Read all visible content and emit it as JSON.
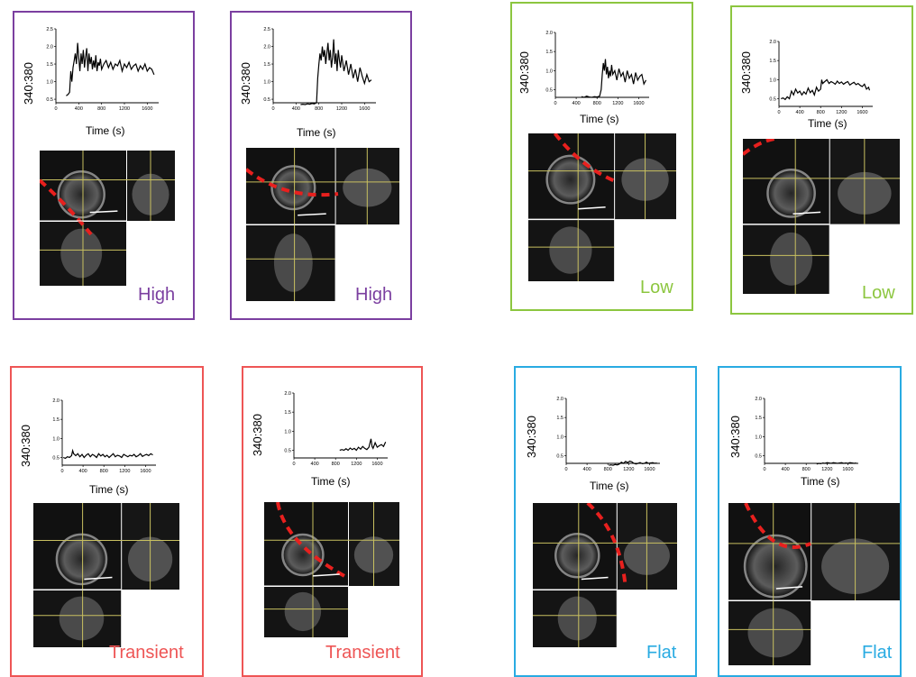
{
  "colors": {
    "High": "#7b3fa0",
    "Low": "#8cc63f",
    "Transient": "#ee5555",
    "Flat": "#29abe2",
    "dashed_line": "#e8201e",
    "crosshair": "#c8c060"
  },
  "chart_data": [
    {
      "type": "line",
      "category": "High",
      "ylabel": "340:380",
      "xlabel": "Time (s)",
      "xlim": [
        0,
        1800
      ],
      "ylim": [
        0.4,
        2.5
      ],
      "xticks": [
        "0",
        "400",
        "800",
        "1200",
        "1600"
      ],
      "yticks": [
        "0.5",
        "1.0",
        "1.5",
        "2.0",
        "2.5"
      ],
      "series": [
        {
          "x": [
            180,
            200,
            220,
            240,
            260,
            280,
            300,
            320,
            340,
            360,
            380,
            400,
            420,
            440,
            460,
            480,
            500,
            520,
            540,
            560,
            580,
            600,
            620,
            640,
            660,
            680,
            700,
            720,
            740,
            760,
            780,
            800,
            840,
            880,
            920,
            960,
            1000,
            1040,
            1080,
            1120,
            1160,
            1200,
            1240,
            1280,
            1320,
            1360,
            1400,
            1440,
            1480,
            1520,
            1560,
            1600,
            1640,
            1680,
            1720
          ],
          "y": [
            0.6,
            0.62,
            0.65,
            0.7,
            1.3,
            1.0,
            1.4,
            1.6,
            1.8,
            1.5,
            2.1,
            1.7,
            1.3,
            1.8,
            1.5,
            1.9,
            1.4,
            1.7,
            1.95,
            1.3,
            1.8,
            1.5,
            1.7,
            1.35,
            1.6,
            1.4,
            1.75,
            1.3,
            1.55,
            1.45,
            1.65,
            1.35,
            1.5,
            1.6,
            1.4,
            1.55,
            1.35,
            1.5,
            1.45,
            1.6,
            1.3,
            1.5,
            1.4,
            1.55,
            1.35,
            1.45,
            1.5,
            1.3,
            1.45,
            1.35,
            1.5,
            1.3,
            1.4,
            1.35,
            1.2
          ]
        }
      ]
    },
    {
      "type": "line",
      "category": "High",
      "ylabel": "340:380",
      "xlabel": "Time (s)",
      "xlim": [
        0,
        1800
      ],
      "ylim": [
        0.4,
        2.5
      ],
      "xticks": [
        "0",
        "400",
        "800",
        "1200",
        "1600"
      ],
      "yticks": [
        "0.5",
        "1.0",
        "1.5",
        "2.0",
        "2.5"
      ],
      "series": [
        {
          "x": [
            480,
            520,
            560,
            600,
            640,
            680,
            720,
            760,
            780,
            800,
            820,
            840,
            860,
            880,
            900,
            920,
            940,
            960,
            980,
            1000,
            1020,
            1040,
            1060,
            1080,
            1100,
            1120,
            1140,
            1160,
            1180,
            1200,
            1240,
            1280,
            1320,
            1360,
            1400,
            1440,
            1480,
            1520,
            1560,
            1600,
            1640,
            1680,
            1720
          ],
          "y": [
            0.35,
            0.36,
            0.35,
            0.37,
            0.36,
            0.38,
            0.37,
            0.4,
            1.1,
            1.5,
            1.8,
            1.6,
            2.0,
            1.7,
            1.9,
            1.5,
            1.8,
            2.1,
            1.6,
            1.9,
            1.4,
            1.7,
            2.2,
            1.5,
            1.8,
            1.3,
            1.9,
            1.6,
            1.4,
            1.75,
            1.3,
            1.6,
            1.2,
            1.5,
            1.1,
            1.35,
            1.0,
            1.4,
            1.15,
            0.95,
            1.2,
            1.0,
            1.05
          ]
        }
      ]
    },
    {
      "type": "line",
      "category": "Low",
      "ylabel": "340:380",
      "xlabel": "Time (s)",
      "xlim": [
        0,
        1800
      ],
      "ylim": [
        0.3,
        2.0
      ],
      "xticks": [
        "0",
        "400",
        "800",
        "1200",
        "1600"
      ],
      "yticks": [
        "0.5",
        "1.0",
        "1.5",
        "2.0"
      ],
      "series": [
        {
          "x": [
            500,
            550,
            600,
            650,
            700,
            750,
            800,
            850,
            880,
            900,
            920,
            940,
            960,
            980,
            1000,
            1020,
            1040,
            1060,
            1080,
            1100,
            1140,
            1180,
            1220,
            1260,
            1300,
            1340,
            1380,
            1420,
            1460,
            1500,
            1540,
            1580,
            1620,
            1660,
            1700,
            1740
          ],
          "y": [
            0.32,
            0.3,
            0.33,
            0.31,
            0.3,
            0.32,
            0.31,
            0.33,
            0.5,
            0.9,
            1.2,
            1.0,
            1.3,
            0.9,
            1.1,
            0.8,
            1.0,
            0.85,
            1.15,
            0.9,
            1.0,
            0.75,
            1.05,
            0.85,
            0.95,
            0.7,
            1.0,
            0.8,
            0.9,
            0.65,
            0.95,
            0.75,
            0.85,
            0.9,
            0.65,
            0.75
          ]
        }
      ]
    },
    {
      "type": "line",
      "category": "Low",
      "ylabel": "340:380",
      "xlabel": "Time (s)",
      "xlim": [
        0,
        1800
      ],
      "ylim": [
        0.3,
        2.0
      ],
      "xticks": [
        "0",
        "400",
        "800",
        "1200",
        "1600"
      ],
      "yticks": [
        "0.5",
        "1.0",
        "1.5",
        "2.0"
      ],
      "series": [
        {
          "x": [
            40,
            80,
            120,
            160,
            200,
            240,
            280,
            320,
            360,
            400,
            440,
            480,
            520,
            560,
            600,
            640,
            680,
            720,
            760,
            800,
            820,
            840,
            880,
            920,
            960,
            1000,
            1040,
            1080,
            1120,
            1160,
            1200,
            1240,
            1280,
            1320,
            1360,
            1400,
            1440,
            1480,
            1520,
            1560,
            1600,
            1640,
            1680,
            1720,
            1740
          ],
          "y": [
            0.5,
            0.52,
            0.48,
            0.55,
            0.5,
            0.7,
            0.6,
            0.75,
            0.65,
            0.7,
            0.6,
            0.68,
            0.62,
            0.78,
            0.66,
            0.72,
            0.6,
            0.8,
            0.7,
            0.75,
            1.0,
            0.9,
            0.95,
            1.0,
            0.9,
            0.95,
            0.92,
            0.88,
            0.96,
            0.9,
            0.94,
            0.88,
            0.92,
            0.95,
            0.86,
            0.9,
            0.93,
            0.87,
            0.9,
            0.85,
            0.82,
            0.88,
            0.75,
            0.8,
            0.72
          ]
        }
      ]
    },
    {
      "type": "line",
      "category": "Transient",
      "ylabel": "340:380",
      "xlabel": "Time (s)",
      "xlim": [
        0,
        1800
      ],
      "ylim": [
        0.3,
        2.0
      ],
      "xticks": [
        "0",
        "400",
        "800",
        "1200",
        "1600"
      ],
      "yticks": [
        "0.5",
        "1.0",
        "1.5",
        "2.0"
      ],
      "series": [
        {
          "x": [
            20,
            60,
            100,
            140,
            180,
            200,
            220,
            260,
            300,
            340,
            380,
            420,
            460,
            500,
            540,
            580,
            620,
            660,
            700,
            740,
            780,
            820,
            860,
            900,
            940,
            980,
            1020,
            1060,
            1100,
            1140,
            1180,
            1220,
            1260,
            1300,
            1340,
            1380,
            1420,
            1460,
            1500,
            1540,
            1580,
            1620,
            1660,
            1700,
            1740
          ],
          "y": [
            0.5,
            0.48,
            0.52,
            0.5,
            0.55,
            0.68,
            0.6,
            0.55,
            0.6,
            0.52,
            0.58,
            0.5,
            0.56,
            0.6,
            0.52,
            0.58,
            0.55,
            0.5,
            0.6,
            0.54,
            0.58,
            0.52,
            0.56,
            0.5,
            0.55,
            0.6,
            0.52,
            0.56,
            0.54,
            0.5,
            0.58,
            0.55,
            0.52,
            0.56,
            0.54,
            0.58,
            0.52,
            0.55,
            0.6,
            0.53,
            0.56,
            0.58,
            0.55,
            0.6,
            0.57
          ]
        }
      ]
    },
    {
      "type": "line",
      "category": "Transient",
      "ylabel": "340:380",
      "xlabel": "Time (s)",
      "xlim": [
        0,
        1800
      ],
      "ylim": [
        0.3,
        2.0
      ],
      "xticks": [
        "0",
        "400",
        "800",
        "1200",
        "1600"
      ],
      "yticks": [
        "0.5",
        "1.0",
        "1.5",
        "2.0"
      ],
      "series": [
        {
          "x": [
            880,
            920,
            960,
            1000,
            1040,
            1080,
            1120,
            1160,
            1200,
            1240,
            1280,
            1320,
            1360,
            1400,
            1440,
            1480,
            1500,
            1520,
            1560,
            1600,
            1640,
            1680,
            1720,
            1760
          ],
          "y": [
            0.5,
            0.52,
            0.5,
            0.54,
            0.5,
            0.56,
            0.52,
            0.55,
            0.5,
            0.58,
            0.53,
            0.6,
            0.55,
            0.52,
            0.58,
            0.8,
            0.6,
            0.55,
            0.7,
            0.58,
            0.62,
            0.65,
            0.6,
            0.72
          ]
        }
      ]
    },
    {
      "type": "line",
      "category": "Flat",
      "ylabel": "340:380",
      "xlabel": "Time (s)",
      "xlim": [
        0,
        1800
      ],
      "ylim": [
        0.3,
        2.0
      ],
      "xticks": [
        "0",
        "400",
        "800",
        "1200",
        "1600"
      ],
      "yticks": [
        "0.5",
        "1.0",
        "1.5",
        "2.0"
      ],
      "series": [
        {
          "x": [
            820,
            860,
            900,
            940,
            980,
            1020,
            1060,
            1100,
            1140,
            1180,
            1220,
            1260,
            1300,
            1340,
            1380,
            1420,
            1460,
            1500,
            1540,
            1580,
            1620,
            1660,
            1700,
            1740
          ],
          "y": [
            0.25,
            0.26,
            0.25,
            0.27,
            0.26,
            0.28,
            0.33,
            0.3,
            0.35,
            0.32,
            0.36,
            0.34,
            0.3,
            0.28,
            0.3,
            0.32,
            0.29,
            0.3,
            0.33,
            0.3,
            0.31,
            0.32,
            0.3,
            0.31
          ]
        }
      ]
    },
    {
      "type": "line",
      "category": "Flat",
      "ylabel": "340:380",
      "xlabel": "Time (s)",
      "xlim": [
        0,
        1800
      ],
      "ylim": [
        0.3,
        2.0
      ],
      "xticks": [
        "0",
        "400",
        "800",
        "1200",
        "1600"
      ],
      "yticks": [
        "0.5",
        "1.0",
        "1.5",
        "2.0"
      ],
      "series": [
        {
          "x": [
            1000,
            1040,
            1080,
            1120,
            1160,
            1200,
            1240,
            1280,
            1320,
            1360,
            1400,
            1440,
            1480,
            1520,
            1560,
            1600,
            1640,
            1680,
            1720,
            1760
          ],
          "y": [
            0.28,
            0.3,
            0.29,
            0.31,
            0.3,
            0.32,
            0.31,
            0.3,
            0.32,
            0.31,
            0.3,
            0.31,
            0.32,
            0.3,
            0.31,
            0.3,
            0.32,
            0.31,
            0.3,
            0.31
          ]
        }
      ]
    }
  ]
}
